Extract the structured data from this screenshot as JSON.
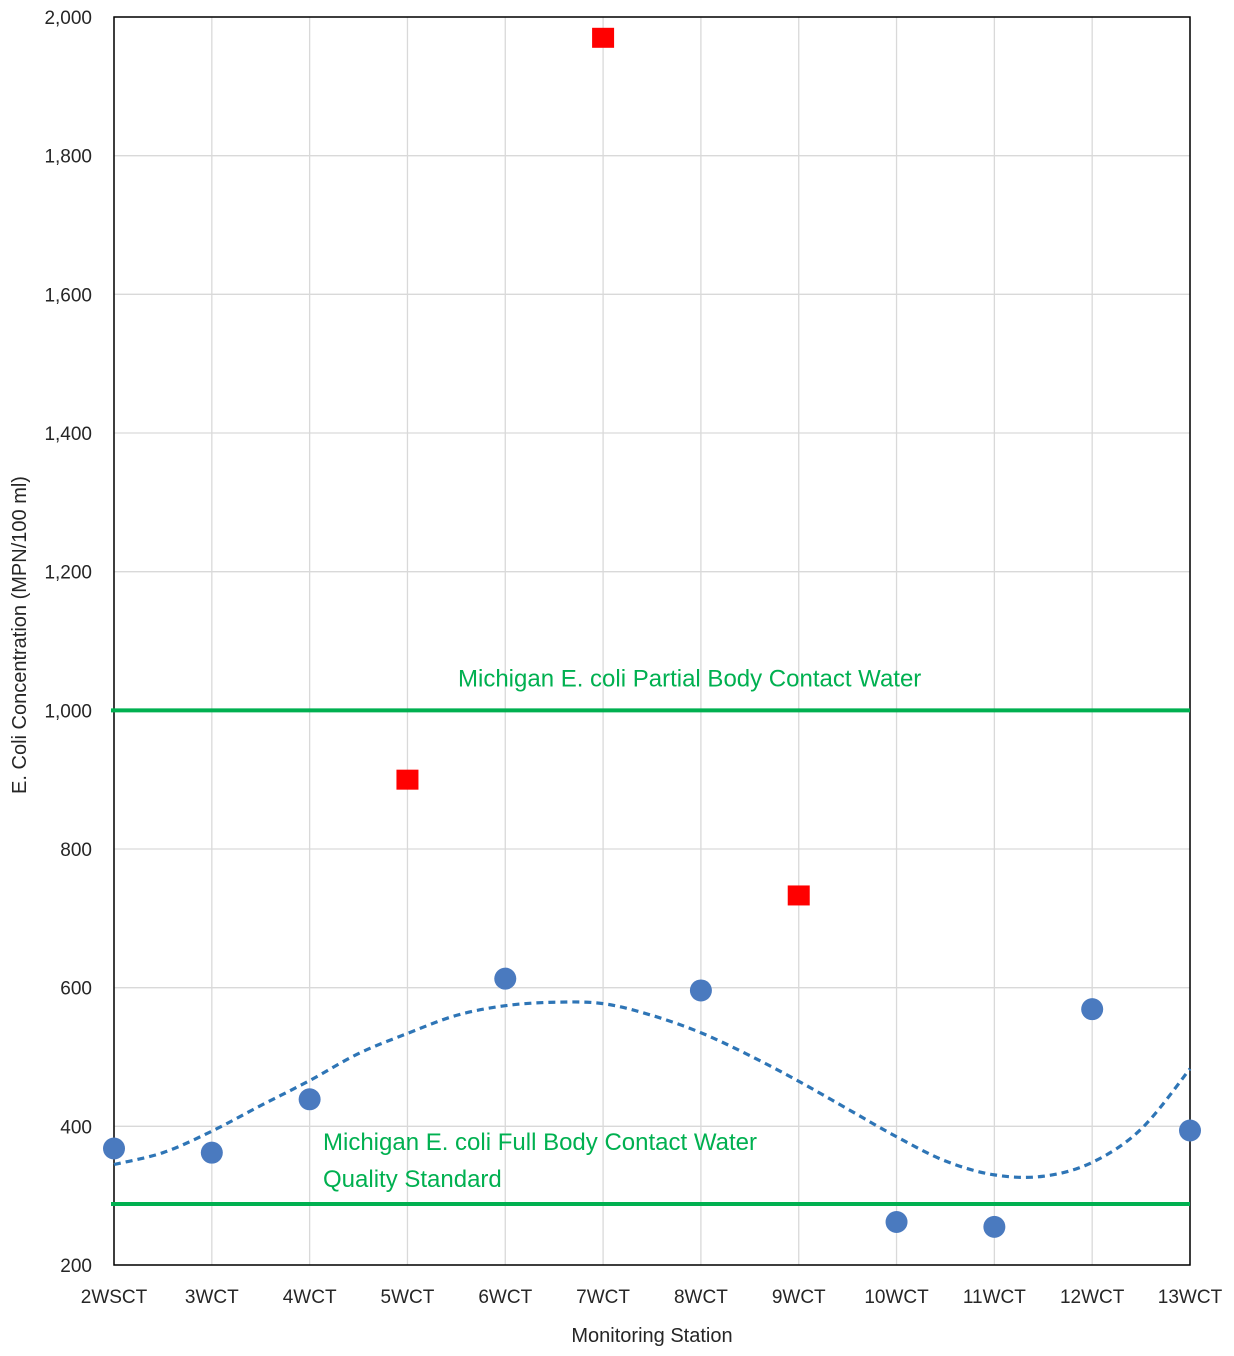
{
  "chart_data": {
    "type": "scatter",
    "title": "",
    "xlabel": "Monitoring Station",
    "ylabel": "E. Coli Concentration (MPN/100 ml)",
    "categories": [
      "2WSCT",
      "3WCT",
      "4WCT",
      "5WCT",
      "6WCT",
      "7WCT",
      "8WCT",
      "9WCT",
      "10WCT",
      "11WCT",
      "12WCT",
      "13WCT"
    ],
    "ylim": [
      200,
      2000
    ],
    "yticks": [
      200,
      400,
      600,
      800,
      1000,
      1200,
      1400,
      1600,
      1800,
      2000
    ],
    "ytick_labels": [
      "200",
      "400",
      "600",
      "800",
      "1,000",
      "1,200",
      "1,400",
      "1,600",
      "1,800",
      "2,000"
    ],
    "grid": true,
    "series": [
      {
        "marker": "circle",
        "color": "#4a7abf",
        "points": [
          {
            "x": "2WSCT",
            "y": 368
          },
          {
            "x": "3WCT",
            "y": 362
          },
          {
            "x": "4WCT",
            "y": 439
          },
          {
            "x": "6WCT",
            "y": 613
          },
          {
            "x": "8WCT",
            "y": 596
          },
          {
            "x": "10WCT",
            "y": 262
          },
          {
            "x": "11WCT",
            "y": 255
          },
          {
            "x": "12WCT",
            "y": 569
          },
          {
            "x": "13WCT",
            "y": 394
          }
        ]
      },
      {
        "marker": "square",
        "color": "#ff0000",
        "points": [
          {
            "x": "5WCT",
            "y": 900
          },
          {
            "x": "7WCT",
            "y": 1970
          },
          {
            "x": "9WCT",
            "y": 733
          }
        ]
      }
    ],
    "trendline": {
      "style": "dashed",
      "color": "#2e75b6",
      "x": [
        0,
        0.5,
        1,
        1.5,
        2,
        2.5,
        3,
        3.5,
        4,
        4.5,
        5,
        5.5,
        6,
        6.5,
        7,
        7.5,
        8,
        8.5,
        9,
        9.5,
        10,
        10.5,
        11
      ],
      "y": [
        345,
        362,
        393,
        430,
        466,
        505,
        534,
        560,
        574,
        579,
        577,
        560,
        535,
        502,
        465,
        425,
        385,
        350,
        330,
        328,
        348,
        396,
        483
      ]
    },
    "reference_lines": [
      {
        "y": 1000,
        "color": "#00b050",
        "label": "Michigan E. coli Partial Body Contact Water"
      },
      {
        "y": 288,
        "color": "#00b050",
        "label_lines": [
          "Michigan E. coli Full Body Contact Water",
          "Quality Standard"
        ]
      }
    ]
  }
}
